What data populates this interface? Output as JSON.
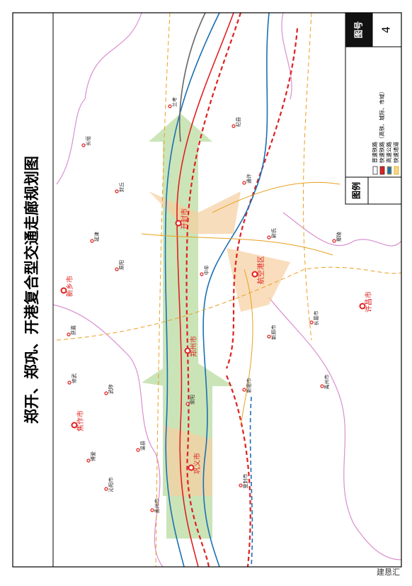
{
  "title": "郑开、郑巩、开港复合型交通走廊规划图",
  "figure": {
    "label": "图号",
    "number": "4"
  },
  "legend": {
    "title": "图例",
    "items": [
      "普速铁路",
      "快速铁路（高铁、城际、市域）",
      "高速公路",
      "快速通道"
    ]
  },
  "cities": [
    "开封市",
    "郑州市",
    "新乡市",
    "焦作市",
    "许昌市",
    "航空港区",
    "中牟",
    "荥阳",
    "巩义市",
    "新郑市",
    "长葛市",
    "禹州市",
    "尉氏",
    "通许",
    "杞县",
    "兰考",
    "封丘",
    "延津",
    "原阳",
    "获嘉",
    "修武",
    "武陟",
    "温县",
    "孟州市",
    "沁阳市",
    "博爱",
    "长垣",
    "鄢陵",
    "新密市",
    "登封市"
  ],
  "watermark": "建恳汇"
}
